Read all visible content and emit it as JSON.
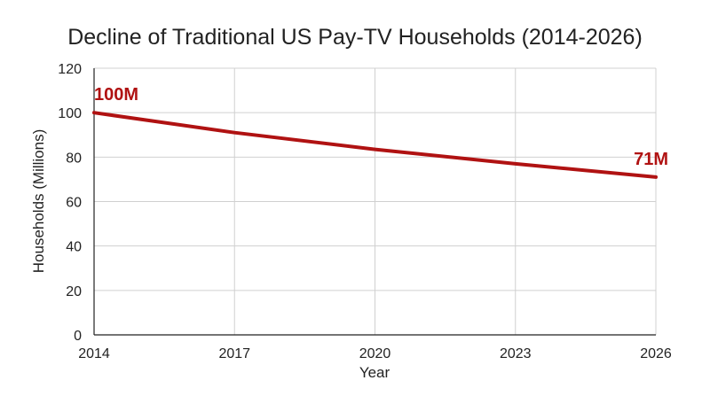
{
  "chart_data": {
    "type": "line",
    "title": "Decline of Traditional US Pay-TV Households (2014-2026)",
    "xlabel": "Year",
    "ylabel": "Households (Millions)",
    "x": [
      2014,
      2017,
      2020,
      2023,
      2026
    ],
    "series": [
      {
        "values": [
          100,
          91,
          83.5,
          77,
          71
        ]
      }
    ],
    "xlim": [
      2014,
      2026
    ],
    "ylim": [
      0,
      120
    ],
    "xticks": [
      2014,
      2017,
      2020,
      2023,
      2026
    ],
    "yticks": [
      0,
      20,
      40,
      60,
      80,
      100,
      120
    ],
    "annotations": [
      {
        "x": 2014,
        "y": 100,
        "text": "100M"
      },
      {
        "x": 2026,
        "y": 71,
        "text": "71M"
      }
    ],
    "grid": true,
    "legend": "none"
  },
  "colors": {
    "line": "#b01212",
    "annotation": "#b01212"
  }
}
